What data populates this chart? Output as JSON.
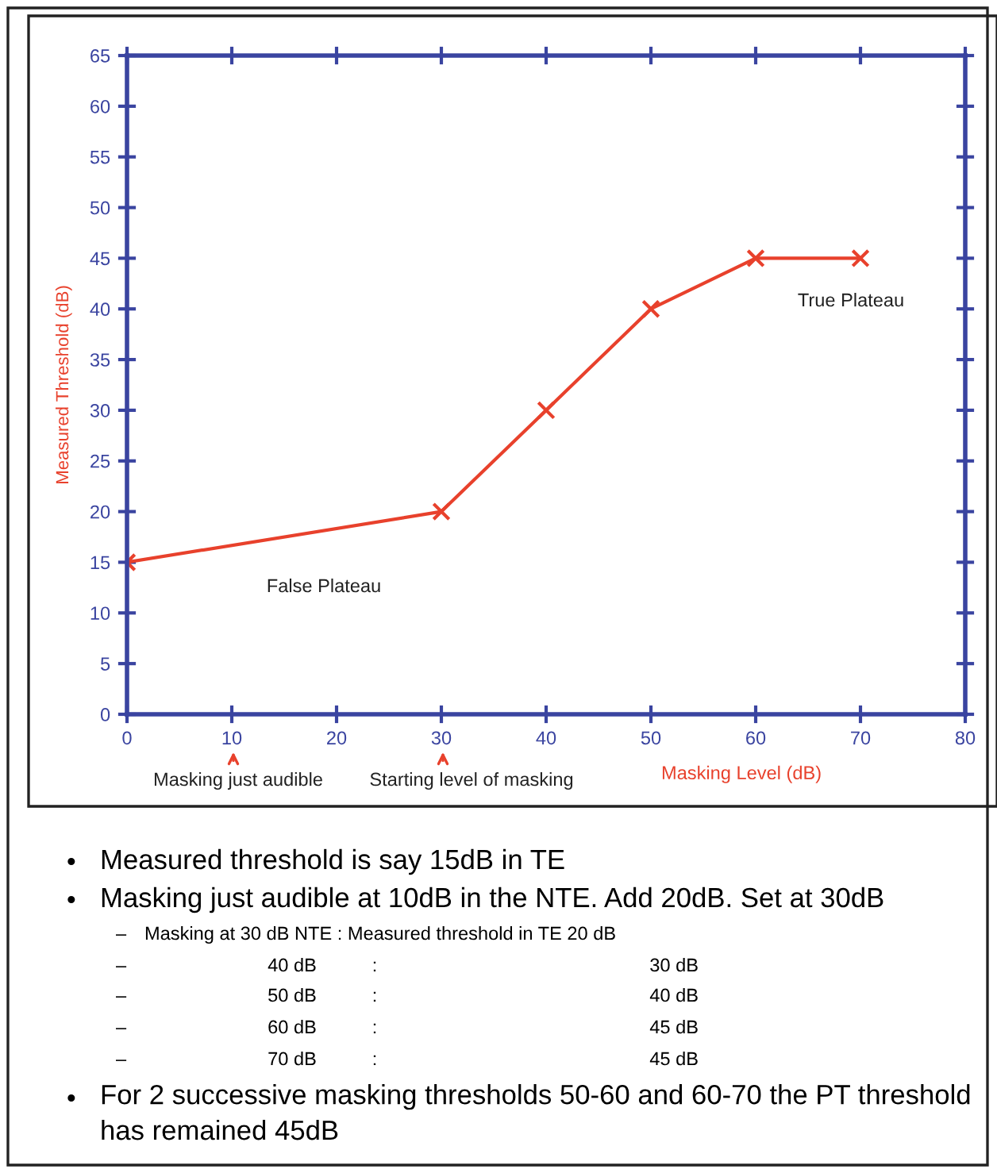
{
  "chart_data": {
    "type": "line",
    "xlabel": "Masking Level (dB)",
    "ylabel": "Measured Threshold (dB)",
    "x": [
      0,
      30,
      40,
      50,
      60,
      70
    ],
    "series": [
      {
        "color": "#e8412c",
        "values": [
          15,
          20,
          30,
          40,
          45,
          45
        ]
      }
    ],
    "xlim": [
      0,
      80
    ],
    "xticks": [
      0,
      10,
      20,
      30,
      40,
      50,
      60,
      70,
      80
    ],
    "ylim": [
      0,
      65
    ],
    "yticks": [
      0,
      5,
      10,
      15,
      20,
      25,
      30,
      35,
      40,
      45,
      50,
      55,
      60,
      65
    ],
    "grid": false,
    "legend": false,
    "marker": "cross",
    "line_style": "solid",
    "annotations": [
      "False Plateau",
      "True Plateau",
      "Masking just audible",
      "Starting level of masking",
      "•",
      "Measured threshold is say 15dB in TE",
      "•",
      "Masking just audible at 10dB in the NTE. Add 20dB. Set at 30dB",
      "–",
      "Masking at 30 dB NTE : Measured threshold in TE 20 dB",
      "–",
      "40 dB",
      ":",
      "30 dB",
      "–",
      "50 dB",
      ":",
      "40 dB",
      "–",
      "60 dB",
      ":",
      "45 dB",
      "–",
      "70 dB",
      ":",
      "45 dB",
      "•",
      "For 2 successive masking thresholds 50-60 and 60-70 the PT threshold has remained 45dB"
    ]
  }
}
